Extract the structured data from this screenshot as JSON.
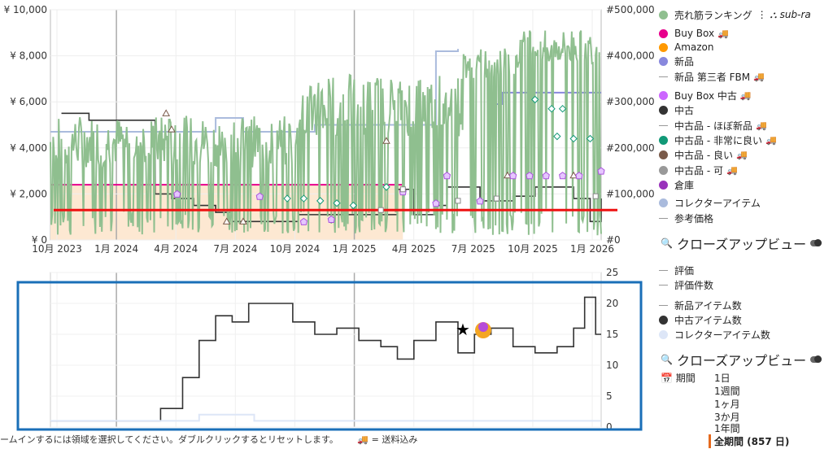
{
  "legend_top": [
    {
      "label": "売れ筋ランキング",
      "color": "#8fbf8f",
      "style": "dot",
      "extra": "sub-ra",
      "y": 18
    },
    {
      "label": "Buy Box",
      "color": "#e8008c",
      "style": "dot",
      "truck": true,
      "y": 41
    },
    {
      "label": "Amazon",
      "color": "#ff9900",
      "style": "dot",
      "y": 58
    },
    {
      "label": "新品",
      "color": "#8888dd",
      "style": "dot",
      "y": 75
    },
    {
      "label": "新品 第三者 FBM",
      "color": "#999999",
      "style": "dash",
      "truck": true,
      "y": 94
    },
    {
      "label": "Buy Box 中古",
      "color": "#cc66ff",
      "style": "dot",
      "truck": true,
      "y": 117
    },
    {
      "label": "中古",
      "color": "#333333",
      "style": "dot",
      "y": 135
    },
    {
      "label": "中古品 - ほぼ新品",
      "color": "#999999",
      "style": "dash",
      "truck": true,
      "y": 154
    },
    {
      "label": "中古品 - 非常に良い",
      "color": "#119977",
      "style": "dot",
      "truck": true,
      "y": 172
    },
    {
      "label": "中古品 - 良い",
      "color": "#7a5a4a",
      "style": "dot",
      "truck": true,
      "y": 190
    },
    {
      "label": "中古品 - 可",
      "color": "#999999",
      "style": "dot",
      "truck": true,
      "y": 209
    },
    {
      "label": "倉庫",
      "color": "#9933bb",
      "style": "dot",
      "y": 227
    },
    {
      "label": "コレクターアイテム",
      "color": "#aabbdd",
      "style": "dot",
      "y": 249
    },
    {
      "label": "参考価格",
      "color": "#999999",
      "style": "dash",
      "y": 268
    }
  ],
  "closeup_label_1": "クローズアップビュー",
  "legend_bottom": [
    {
      "label": "評価",
      "color": "#999999",
      "style": "dash",
      "y": 332
    },
    {
      "label": "評価件数",
      "color": "#999999",
      "style": "dash",
      "y": 350
    },
    {
      "label": "新品アイテム数",
      "color": "#999999",
      "style": "dash",
      "y": 375
    },
    {
      "label": "中古アイテム数",
      "color": "#333333",
      "style": "dot",
      "y": 393
    },
    {
      "label": "コレクターアイテム数",
      "color": "#dde6f7",
      "style": "dot",
      "y": 411
    }
  ],
  "closeup_label_2": "クローズアップビュー",
  "period": {
    "label": "期間",
    "options": [
      "1日",
      "1週間",
      "1ヶ月",
      "3か月",
      "1年間",
      "全期間 (857 日)"
    ],
    "selected": 5
  },
  "footer": {
    "hint": "ームインするには領域を選択してください。ダブルクリックするとリセットします。",
    "shipping_note": "= 送料込み"
  },
  "chart_data": [
    {
      "type": "line",
      "title": "",
      "x_ticks": [
        "10月 2023",
        "1月 2024",
        "4月 2024",
        "7月 2024",
        "10月 2024",
        "1月 2025",
        "4月 2025",
        "7月 2025",
        "10月 2025",
        "1月 2026"
      ],
      "y_left_ticks": [
        "¥ 0",
        "¥ 2,000",
        "¥ 4,000",
        "¥ 6,000",
        "¥ 8,000",
        "¥ 10,000"
      ],
      "y_left_range": [
        0,
        10000
      ],
      "y_right_ticks": [
        "#0",
        "#100,000",
        "#200,000",
        "#300,000",
        "#400,000",
        "#500,000"
      ],
      "y_right_range": [
        0,
        500000
      ],
      "series": [
        {
          "name": "中古",
          "color": "#333333",
          "points": [
            [
              0.02,
              5500
            ],
            [
              0.07,
              5500
            ],
            [
              0.07,
              5200
            ],
            [
              0.19,
              5200
            ],
            [
              0.19,
              2000
            ],
            [
              0.22,
              1800
            ],
            [
              0.26,
              1500
            ],
            [
              0.3,
              1200
            ],
            [
              0.33,
              800
            ],
            [
              0.38,
              800
            ],
            [
              0.45,
              1100
            ],
            [
              0.5,
              1100
            ],
            [
              0.55,
              1100
            ],
            [
              0.61,
              1100
            ],
            [
              0.63,
              2200
            ],
            [
              0.66,
              1100
            ],
            [
              0.7,
              1500
            ],
            [
              0.72,
              2300
            ],
            [
              0.78,
              1700
            ],
            [
              0.84,
              1900
            ],
            [
              0.88,
              2300
            ],
            [
              0.92,
              2300
            ],
            [
              0.95,
              1800
            ],
            [
              0.98,
              800
            ],
            [
              1.0,
              1800
            ]
          ]
        },
        {
          "name": "新品",
          "color": "#8888dd",
          "points": [
            [
              0.8,
              5900
            ],
            [
              0.82,
              6400
            ],
            [
              0.9,
              6400
            ],
            [
              1.0,
              6400
            ]
          ]
        },
        {
          "name": "コレクターアイテム",
          "color": "#aabbdd",
          "points": [
            [
              0.0,
              4700
            ],
            [
              0.28,
              4700
            ],
            [
              0.3,
              5300
            ],
            [
              0.34,
              5300
            ],
            [
              0.35,
              4700
            ],
            [
              0.46,
              4700
            ],
            [
              0.48,
              5000
            ],
            [
              0.56,
              5000
            ],
            [
              0.7,
              8200
            ],
            [
              0.74,
              8300
            ]
          ]
        },
        {
          "name": "Buy Box",
          "color": "#e8008c",
          "points": [
            [
              0.0,
              2400
            ],
            [
              0.64,
              2400
            ]
          ]
        }
      ],
      "reference_line": {
        "value": 1300,
        "color": "#ee1111"
      },
      "highlight_band": {
        "from": 0.0,
        "to": 0.64,
        "upper": 2400,
        "color": "#fde8d2"
      }
    },
    {
      "type": "line",
      "title": "",
      "y_ticks": [
        "0",
        "5",
        "10",
        "15",
        "20",
        "25"
      ],
      "y_range": [
        0,
        25
      ],
      "series": [
        {
          "name": "中古アイテム数",
          "color": "#333333",
          "points": [
            [
              0.0,
              1
            ],
            [
              0.16,
              1
            ],
            [
              0.2,
              3
            ],
            [
              0.24,
              8
            ],
            [
              0.27,
              14
            ],
            [
              0.3,
              18
            ],
            [
              0.33,
              17
            ],
            [
              0.36,
              20
            ],
            [
              0.4,
              20
            ],
            [
              0.44,
              17
            ],
            [
              0.48,
              15
            ],
            [
              0.52,
              16
            ],
            [
              0.56,
              14
            ],
            [
              0.6,
              13
            ],
            [
              0.63,
              11
            ],
            [
              0.66,
              14
            ],
            [
              0.7,
              17
            ],
            [
              0.74,
              12
            ],
            [
              0.77,
              15
            ],
            [
              0.8,
              16
            ],
            [
              0.84,
              13
            ],
            [
              0.88,
              12
            ],
            [
              0.92,
              13
            ],
            [
              0.95,
              16
            ],
            [
              0.97,
              21
            ],
            [
              0.99,
              15
            ],
            [
              1.0,
              15
            ]
          ]
        },
        {
          "name": "コレクターアイテム数",
          "color": "#dde6f7",
          "points": [
            [
              0.0,
              1
            ],
            [
              0.25,
              1
            ],
            [
              0.27,
              2
            ],
            [
              0.35,
              2
            ],
            [
              0.37,
              1
            ],
            [
              1.0,
              1
            ]
          ]
        }
      ]
    }
  ]
}
